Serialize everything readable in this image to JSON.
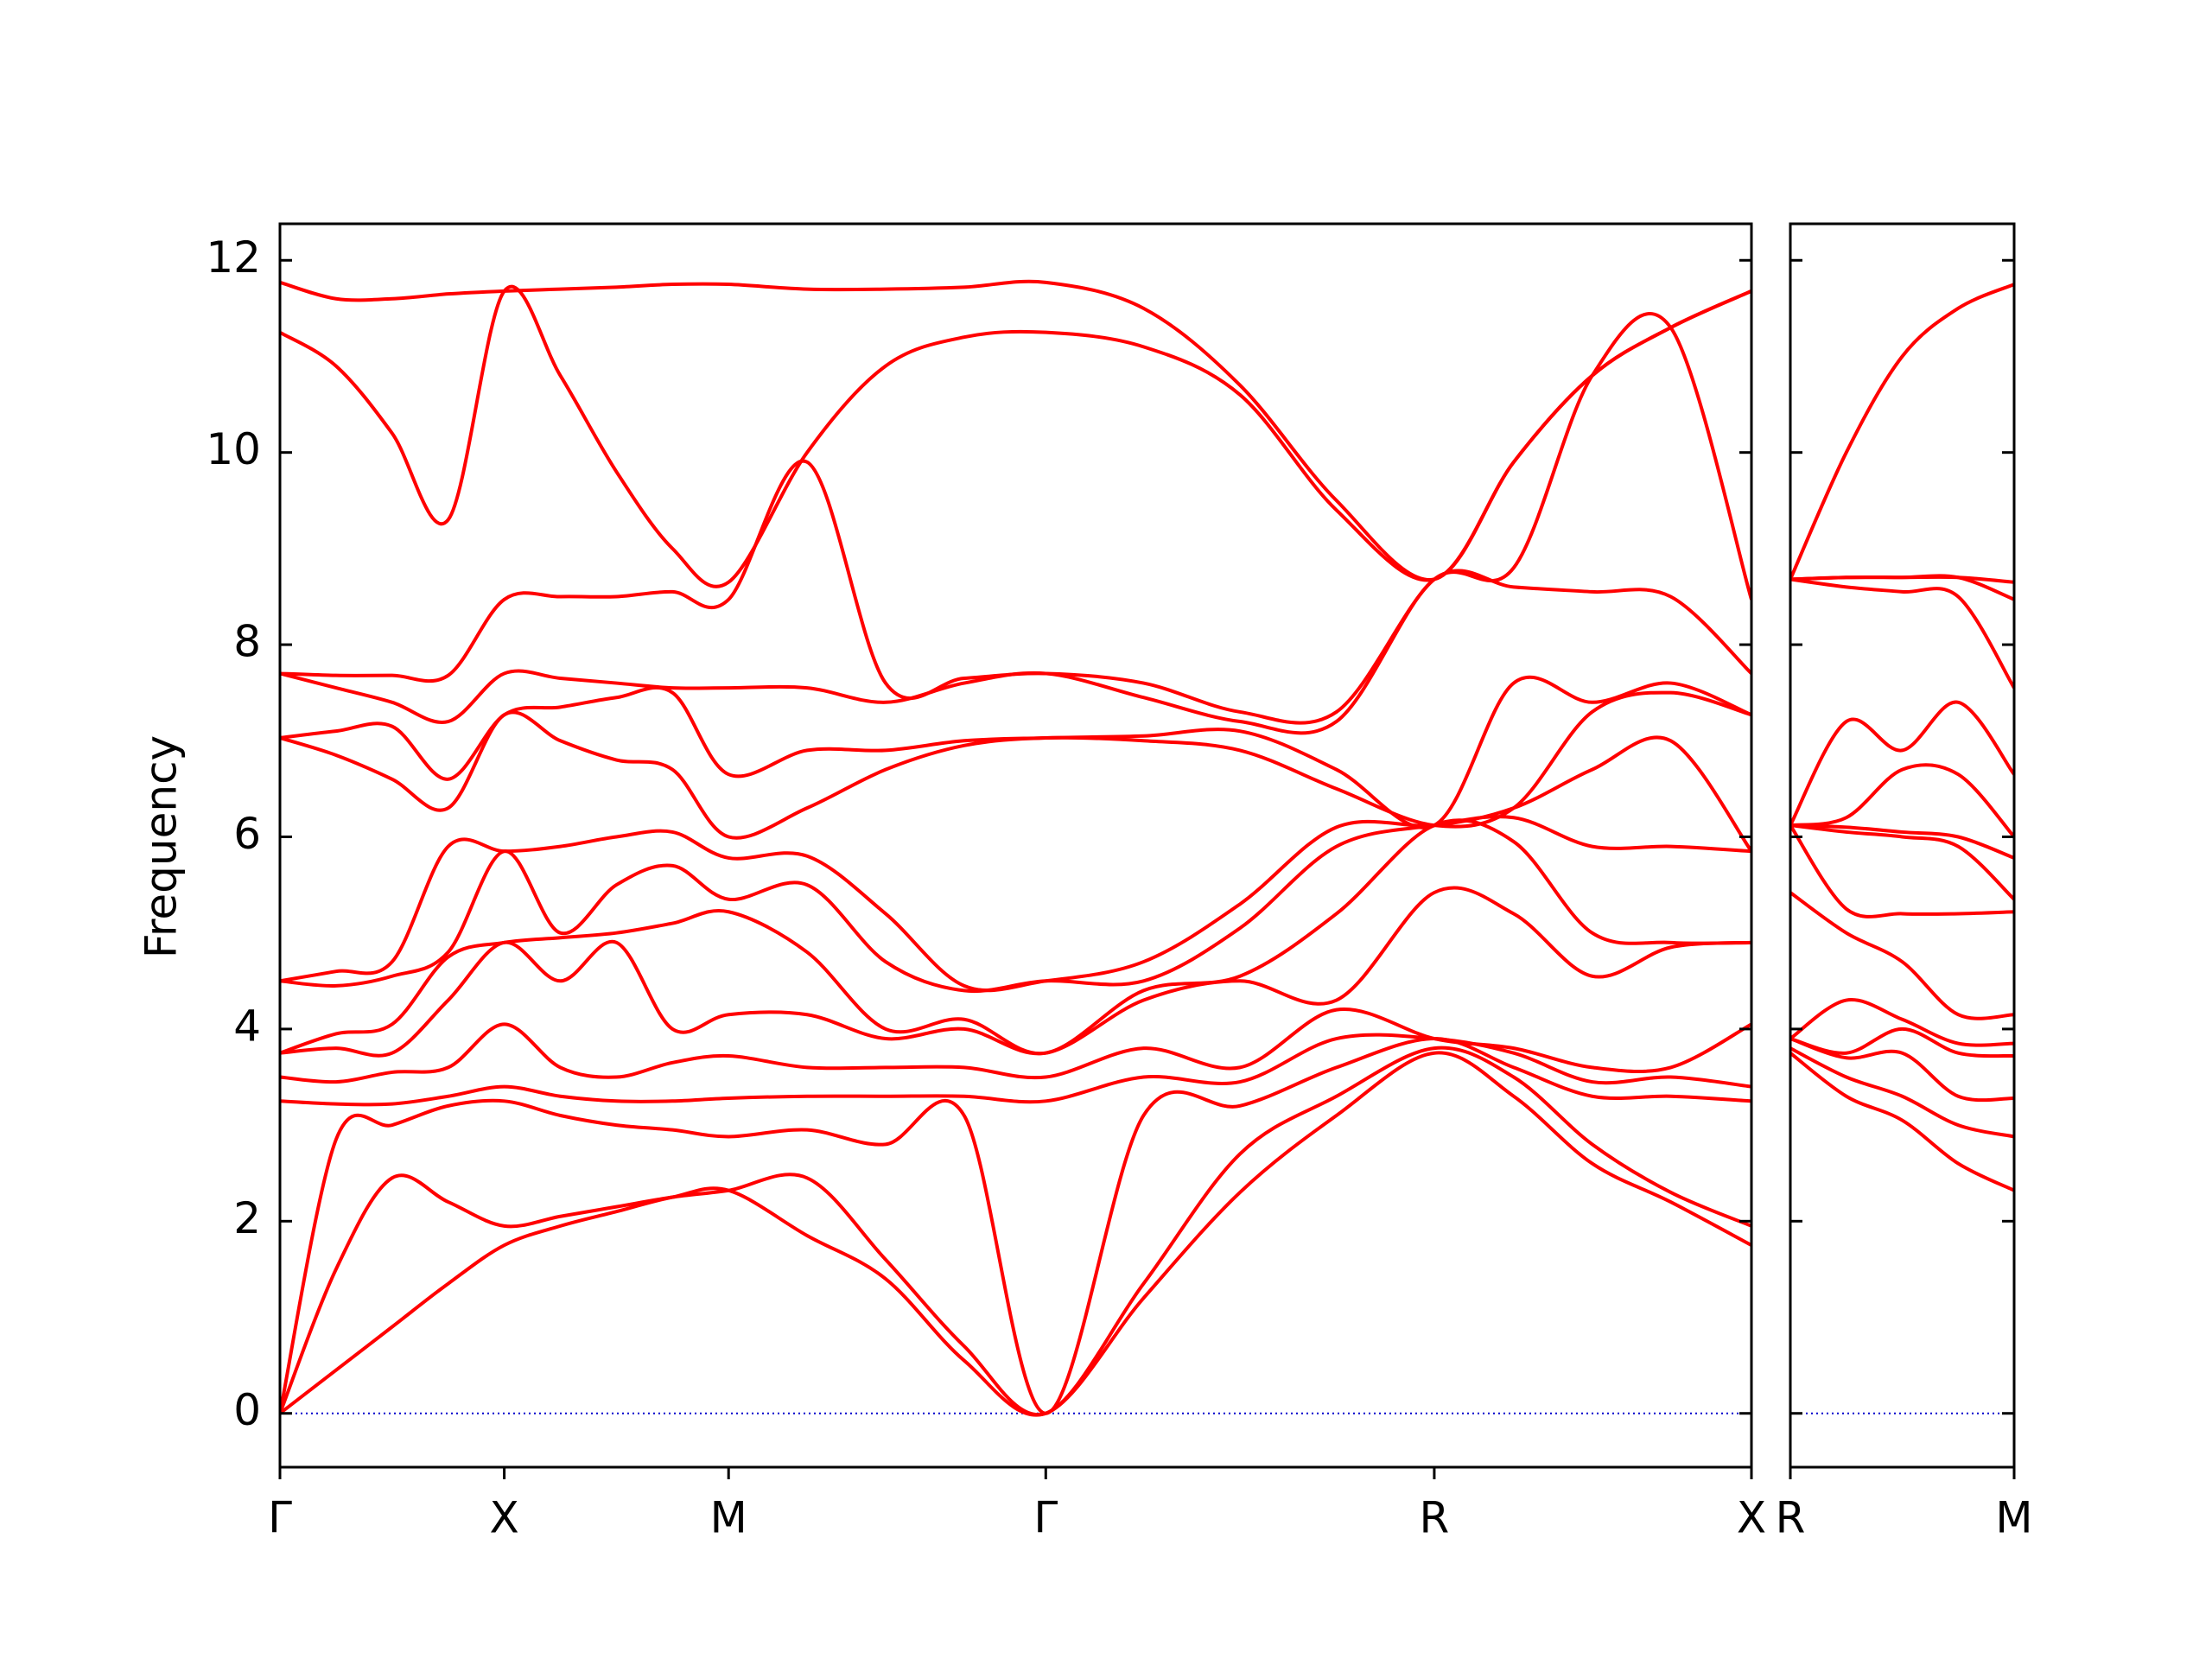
{
  "chart_data": [
    {
      "type": "line",
      "y_label": "Frequency",
      "color": "#ff0000",
      "zero_line_color": "#0000cc",
      "xlim": [
        0,
        6.56
      ],
      "ylim": [
        -0.56,
        12.38
      ],
      "xticks": [
        {
          "value": 0,
          "label": "Γ"
        },
        {
          "value": 1,
          "label": "X"
        },
        {
          "value": 2,
          "label": "M"
        },
        {
          "value": 3.414,
          "label": "Γ"
        },
        {
          "value": 5.146,
          "label": "R"
        },
        {
          "value": 6.56,
          "label": "X"
        }
      ],
      "yticks": [
        0,
        2,
        4,
        6,
        8,
        10,
        12
      ],
      "x": [
        0,
        0.25,
        0.5,
        0.75,
        1,
        1.25,
        1.5,
        1.75,
        2,
        2.35,
        2.7,
        3.05,
        3.414,
        3.85,
        4.28,
        4.71,
        5.146,
        5.5,
        5.85,
        6.2,
        6.56
      ],
      "series": [
        {
          "values": [
            0,
            0.45,
            0.9,
            1.35,
            1.75,
            1.95,
            2.1,
            2.25,
            2.32,
            1.85,
            1.4,
            0.55,
            0,
            1.2,
            2.3,
            3.1,
            3.75,
            3.3,
            2.6,
            2.2,
            1.75
          ]
        },
        {
          "values": [
            0,
            1.5,
            2.45,
            2.2,
            1.95,
            2.05,
            2.15,
            2.25,
            2.32,
            2.45,
            1.6,
            0.7,
            0,
            1.35,
            2.7,
            3.3,
            3.8,
            3.5,
            2.8,
            2.3,
            1.95
          ]
        },
        {
          "values": [
            0,
            2.85,
            3.0,
            3.2,
            3.25,
            3.1,
            3.0,
            2.95,
            2.88,
            2.95,
            2.8,
            3.1,
            0,
            3.1,
            3.2,
            3.6,
            3.9,
            3.6,
            3.3,
            3.3,
            3.25
          ]
        },
        {
          "values": [
            3.25,
            3.22,
            3.22,
            3.3,
            3.4,
            3.3,
            3.25,
            3.25,
            3.28,
            3.3,
            3.3,
            3.3,
            3.25,
            3.5,
            3.45,
            3.9,
            3.9,
            3.75,
            3.45,
            3.5,
            3.4
          ]
        },
        {
          "values": [
            3.5,
            3.45,
            3.55,
            3.6,
            4.05,
            3.6,
            3.5,
            3.65,
            3.72,
            3.6,
            3.6,
            3.6,
            3.5,
            3.8,
            3.6,
            4.2,
            3.9,
            3.8,
            3.6,
            3.6,
            4.05
          ]
        },
        {
          "values": [
            3.75,
            3.8,
            3.75,
            4.3,
            4.9,
            4.5,
            4.9,
            4.0,
            4.15,
            4.15,
            3.9,
            4.0,
            3.75,
            4.3,
            4.5,
            4.3,
            5.42,
            5.2,
            4.55,
            4.85,
            4.9
          ]
        },
        {
          "values": [
            3.75,
            3.95,
            4.05,
            4.75,
            4.9,
            4.95,
            5.0,
            5.1,
            5.22,
            4.8,
            4.0,
            4.1,
            3.75,
            4.4,
            4.55,
            5.2,
            6.12,
            5.95,
            5.0,
            4.9,
            4.9
          ]
        },
        {
          "values": [
            4.5,
            4.45,
            4.55,
            4.8,
            5.85,
            5.0,
            5.5,
            5.7,
            5.35,
            5.5,
            4.7,
            4.4,
            4.5,
            4.5,
            5.05,
            5.9,
            6.12,
            6.2,
            5.9,
            5.9,
            5.85
          ]
        },
        {
          "values": [
            4.5,
            4.6,
            4.7,
            5.9,
            5.85,
            5.9,
            6.0,
            6.05,
            5.78,
            5.8,
            5.2,
            4.45,
            4.5,
            4.7,
            5.3,
            6.1,
            6.12,
            6.3,
            6.7,
            7.0,
            5.85
          ]
        },
        {
          "values": [
            7.03,
            6.85,
            6.6,
            6.3,
            7.27,
            7.0,
            6.8,
            6.7,
            6.0,
            6.3,
            6.7,
            6.95,
            7.03,
            7.0,
            6.9,
            6.5,
            6.12,
            6.3,
            7.3,
            7.5,
            7.27
          ]
        },
        {
          "values": [
            7.03,
            7.1,
            7.15,
            6.6,
            7.27,
            7.35,
            7.45,
            7.5,
            6.65,
            6.9,
            6.9,
            7.0,
            7.03,
            7.05,
            7.1,
            6.7,
            6.12,
            7.6,
            7.4,
            7.6,
            7.27
          ]
        },
        {
          "values": [
            7.7,
            7.55,
            7.4,
            7.2,
            7.7,
            7.65,
            7.6,
            7.55,
            7.55,
            7.55,
            7.4,
            7.6,
            7.7,
            7.45,
            7.2,
            7.2,
            8.68,
            8.6,
            8.55,
            8.5,
            7.7
          ]
        },
        {
          "values": [
            7.7,
            7.68,
            7.68,
            7.68,
            8.47,
            8.5,
            8.5,
            8.55,
            8.47,
            9.9,
            7.6,
            7.65,
            7.7,
            7.6,
            7.3,
            7.3,
            8.68,
            8.8,
            10.8,
            11.3,
            8.47
          ]
        },
        {
          "values": [
            11.25,
            10.9,
            10.2,
            9.3,
            11.68,
            10.8,
            9.8,
            9.0,
            8.65,
            10.0,
            10.9,
            11.2,
            11.25,
            11.1,
            10.6,
            9.4,
            8.68,
            9.9,
            10.8,
            11.3,
            11.68
          ]
        },
        {
          "values": [
            11.77,
            11.6,
            11.6,
            11.65,
            11.68,
            11.7,
            11.72,
            11.75,
            11.75,
            11.7,
            11.7,
            11.72,
            11.77,
            11.5,
            10.7,
            9.5,
            8.68,
            9.9,
            10.8,
            11.3,
            11.68
          ]
        }
      ]
    },
    {
      "type": "line",
      "color": "#ff0000",
      "zero_line_color": "#0000cc",
      "xlim": [
        0,
        1
      ],
      "xticks": [
        {
          "value": 0,
          "label": "R"
        },
        {
          "value": 1,
          "label": "M"
        }
      ],
      "x": [
        0,
        0.25,
        0.5,
        0.75,
        1
      ],
      "series": [
        {
          "values": [
            3.75,
            3.3,
            3.05,
            2.6,
            2.32
          ]
        },
        {
          "values": [
            3.8,
            3.5,
            3.3,
            3.0,
            2.88
          ]
        },
        {
          "values": [
            3.9,
            3.7,
            3.75,
            3.3,
            3.28
          ]
        },
        {
          "values": [
            3.9,
            3.75,
            4.0,
            3.75,
            3.72
          ]
        },
        {
          "values": [
            3.9,
            4.3,
            4.1,
            3.85,
            3.85
          ]
        },
        {
          "values": [
            5.42,
            5.0,
            4.7,
            4.15,
            4.15
          ]
        },
        {
          "values": [
            6.12,
            5.25,
            5.2,
            5.2,
            5.22
          ]
        },
        {
          "values": [
            6.12,
            6.05,
            6.0,
            5.9,
            5.35
          ]
        },
        {
          "values": [
            6.12,
            6.1,
            6.05,
            6.0,
            5.78
          ]
        },
        {
          "values": [
            6.12,
            6.2,
            6.7,
            6.65,
            6.0
          ]
        },
        {
          "values": [
            6.12,
            7.2,
            6.9,
            7.4,
            6.65
          ]
        },
        {
          "values": [
            8.68,
            8.6,
            8.55,
            8.5,
            7.55
          ]
        },
        {
          "values": [
            8.68,
            8.7,
            8.7,
            8.7,
            8.47
          ]
        },
        {
          "values": [
            8.68,
            8.7,
            8.7,
            8.7,
            8.65
          ]
        },
        {
          "values": [
            8.68,
            10.0,
            11.0,
            11.5,
            11.75
          ]
        }
      ]
    }
  ]
}
